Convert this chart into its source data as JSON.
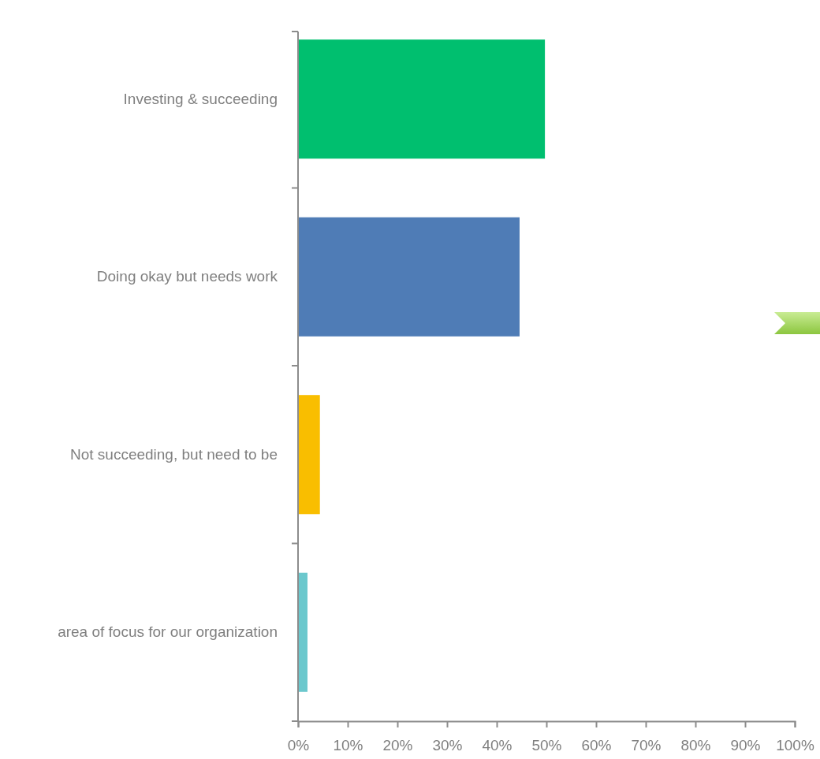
{
  "chart_data": {
    "type": "bar",
    "orientation": "horizontal",
    "categories": [
      "Investing & succeeding",
      "Doing okay but needs work",
      "Not succeeding, but need to be",
      "area of focus for our organization"
    ],
    "values": [
      49.7,
      44.6,
      4.4,
      1.9
    ],
    "colors": [
      "#00bf6f",
      "#4f7cb6",
      "#f9be00",
      "#6bc8cd"
    ],
    "xlim": [
      0,
      100
    ],
    "xticks": [
      {
        "value": 0,
        "label": "0%"
      },
      {
        "value": 10,
        "label": "10%"
      },
      {
        "value": 20,
        "label": "20%"
      },
      {
        "value": 30,
        "label": "30%"
      },
      {
        "value": 40,
        "label": "40%"
      },
      {
        "value": 50,
        "label": "50%"
      },
      {
        "value": 60,
        "label": "60%"
      },
      {
        "value": 70,
        "label": "70%"
      },
      {
        "value": 80,
        "label": "80%"
      },
      {
        "value": 90,
        "label": "90%"
      },
      {
        "value": 100,
        "label": "100%"
      }
    ],
    "grid": false
  }
}
